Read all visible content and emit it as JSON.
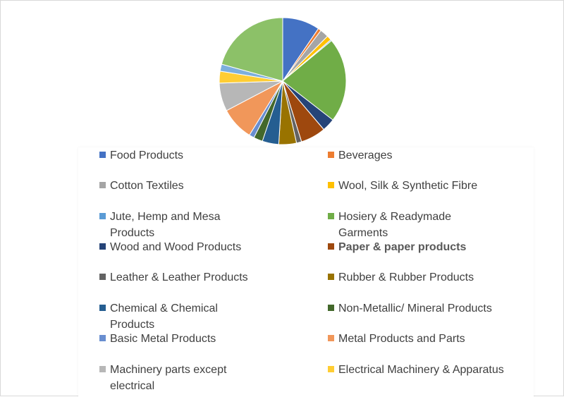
{
  "chart_data": {
    "type": "pie",
    "title": "",
    "slices": [
      {
        "label": "Food Products",
        "value": 9.5,
        "color": "#4472c4"
      },
      {
        "label": "Beverages",
        "value": 0.8,
        "color": "#ed7d31"
      },
      {
        "label": "Cotton Textiles",
        "value": 2.2,
        "color": "#a5a5a5"
      },
      {
        "label": "Wool, Silk & Synthetic Fibre",
        "value": 1.2,
        "color": "#ffc000"
      },
      {
        "label": "Jute, Hemp and Mesa Products",
        "value": 0.3,
        "color": "#5b9bd5"
      },
      {
        "label": "Hosiery & Readymade Garments",
        "value": 21.5,
        "color": "#70ad47"
      },
      {
        "label": "Wood and Wood Products",
        "value": 3.3,
        "color": "#264478"
      },
      {
        "label": "Paper & paper products",
        "value": 6.4,
        "color": "#9e480e"
      },
      {
        "label": "Leather & Leather Products",
        "value": 1.3,
        "color": "#636363"
      },
      {
        "label": "Rubber & Rubber Products",
        "value": 4.5,
        "color": "#997300"
      },
      {
        "label": "Chemical & Chemical Products",
        "value": 4.2,
        "color": "#255e91"
      },
      {
        "label": "Non-Metallic/ Mineral Products",
        "value": 2.3,
        "color": "#43682b"
      },
      {
        "label": "Basic Metal Products",
        "value": 1.3,
        "color": "#698ed0"
      },
      {
        "label": "Metal Products and Parts",
        "value": 8.5,
        "color": "#f1975a"
      },
      {
        "label": "Machinery parts except electrical",
        "value": 7.2,
        "color": "#b7b7b7"
      },
      {
        "label": "Electrical Machinery & Apparatus",
        "value": 3.0,
        "color": "#ffcd33"
      },
      {
        "label": "",
        "value": 1.8,
        "color": "#7cafdd"
      },
      {
        "label": "",
        "value": 20.7,
        "color": "#8cc168"
      }
    ],
    "legend": [
      {
        "label": "Food Products",
        "color": "#4472c4"
      },
      {
        "label": "Beverages",
        "color": "#ed7d31"
      },
      {
        "label": "Cotton Textiles",
        "color": "#a5a5a5"
      },
      {
        "label": "Wool, Silk & Synthetic Fibre",
        "color": "#ffc000"
      },
      {
        "label": "Jute, Hemp and Mesa Products",
        "color": "#5b9bd5"
      },
      {
        "label": "Hosiery & Readymade Garments",
        "color": "#70ad47"
      },
      {
        "label": "Wood and Wood Products",
        "color": "#264478"
      },
      {
        "label": "Paper & paper products",
        "color": "#9e480e"
      },
      {
        "label": "Leather & Leather Products",
        "color": "#636363"
      },
      {
        "label": "Rubber & Rubber Products",
        "color": "#997300"
      },
      {
        "label": "Chemical & Chemical Products",
        "color": "#255e91"
      },
      {
        "label": "Non-Metallic/ Mineral Products",
        "color": "#43682b"
      },
      {
        "label": "Basic Metal Products",
        "color": "#698ed0"
      },
      {
        "label": "Metal Products and Parts",
        "color": "#f1975a"
      },
      {
        "label": "Machinery parts except electrical",
        "color": "#b7b7b7"
      },
      {
        "label": "Electrical Machinery & Apparatus",
        "color": "#ffcd33"
      }
    ],
    "legend_placement": "bottom"
  }
}
